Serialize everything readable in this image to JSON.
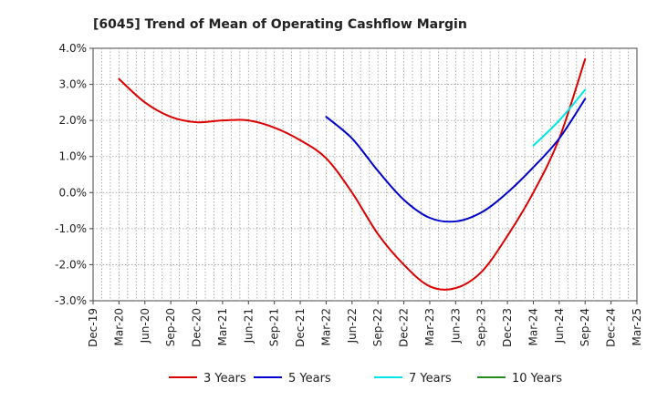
{
  "chart_data": {
    "type": "line",
    "title": "[6045]  Trend of Mean of Operating Cashflow Margin",
    "xlabel": "",
    "ylabel": "",
    "ylim": [
      -3.0,
      4.0
    ],
    "y_ticks": [
      "4.0%",
      "3.0%",
      "2.0%",
      "1.0%",
      "0.0%",
      "-1.0%",
      "-2.0%",
      "-3.0%"
    ],
    "y_tick_values": [
      4,
      3,
      2,
      1,
      0,
      -1,
      -2,
      -3
    ],
    "categories": [
      "Dec-19",
      "Mar-20",
      "Jun-20",
      "Sep-20",
      "Dec-20",
      "Mar-21",
      "Jun-21",
      "Sep-21",
      "Dec-21",
      "Mar-22",
      "Jun-22",
      "Sep-22",
      "Dec-22",
      "Mar-23",
      "Jun-23",
      "Sep-23",
      "Dec-23",
      "Mar-24",
      "Jun-24",
      "Sep-24",
      "Dec-24",
      "Mar-25"
    ],
    "grid": "dotted",
    "legend_position": "bottom",
    "series": [
      {
        "name": "3 Years",
        "color": "#dd0000",
        "values": [
          null,
          3.15,
          2.5,
          2.1,
          1.95,
          2.0,
          2.0,
          1.8,
          1.45,
          0.95,
          0.0,
          -1.15,
          -2.0,
          -2.6,
          -2.65,
          -2.2,
          -1.2,
          0.0,
          1.5,
          3.7,
          null,
          null
        ]
      },
      {
        "name": "5 Years",
        "color": "#0000cc",
        "values": [
          null,
          null,
          null,
          null,
          null,
          null,
          null,
          null,
          null,
          2.1,
          1.5,
          0.6,
          -0.2,
          -0.7,
          -0.8,
          -0.55,
          0.0,
          0.7,
          1.5,
          2.6,
          null,
          null
        ]
      },
      {
        "name": "7 Years",
        "color": "#00e5e5",
        "values": [
          null,
          null,
          null,
          null,
          null,
          null,
          null,
          null,
          null,
          null,
          null,
          null,
          null,
          null,
          null,
          null,
          null,
          1.3,
          2.0,
          2.85,
          null,
          null
        ]
      },
      {
        "name": "10 Years",
        "color": "#228b22",
        "values": [
          null,
          null,
          null,
          null,
          null,
          null,
          null,
          null,
          null,
          null,
          null,
          null,
          null,
          null,
          null,
          null,
          null,
          null,
          null,
          null,
          null,
          null
        ]
      }
    ]
  }
}
